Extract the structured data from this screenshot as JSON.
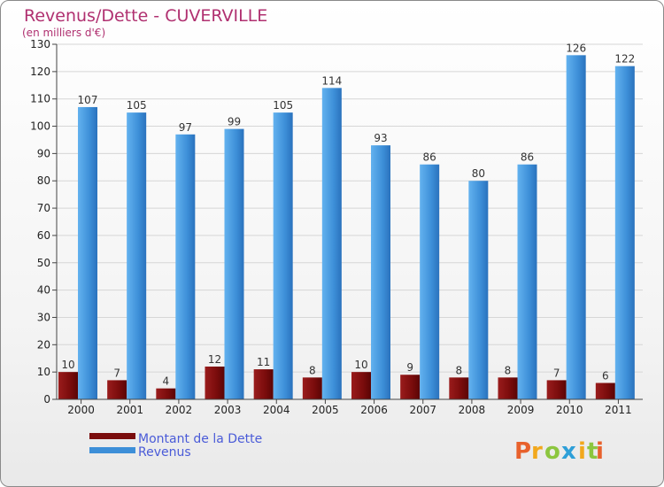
{
  "chart_data": {
    "type": "bar",
    "title": "Revenus/Dette - CUVERVILLE",
    "subtitle": "(en milliers d'€)",
    "categories": [
      "2000",
      "2001",
      "2002",
      "2003",
      "2004",
      "2005",
      "2006",
      "2007",
      "2008",
      "2009",
      "2010",
      "2011"
    ],
    "series": [
      {
        "name": "Montant de la Dette",
        "color": "#7a0c0c",
        "values": [
          10,
          7,
          4,
          12,
          11,
          8,
          10,
          9,
          8,
          8,
          7,
          6
        ]
      },
      {
        "name": "Revenus",
        "color": "#3d8fd8",
        "values": [
          107,
          105,
          97,
          99,
          105,
          114,
          93,
          86,
          80,
          86,
          126,
          122
        ]
      }
    ],
    "ylim": [
      0,
      130
    ],
    "yticks": [
      0,
      10,
      20,
      30,
      40,
      50,
      60,
      70,
      80,
      90,
      100,
      110,
      120,
      130
    ],
    "grid": true,
    "legend": "bottom-left"
  },
  "brand": {
    "letters": [
      "P",
      "r",
      "o",
      "x",
      "i",
      "t",
      "i"
    ],
    "colors": [
      "#e8612c",
      "#f2a81d",
      "#8cc63f",
      "#2e9fd8",
      "#f2a81d",
      "#8cc63f",
      "#e8612c"
    ]
  }
}
